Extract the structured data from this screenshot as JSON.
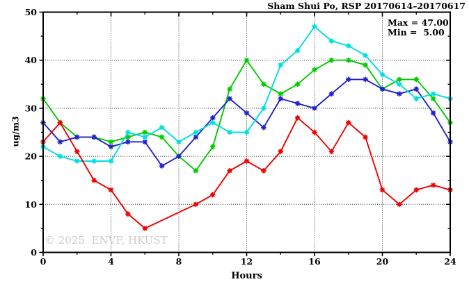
{
  "watermark": "© 2025  ENVF, HKUST",
  "annotations": {
    "max_label": "Max = 47.00",
    "min_label": "Min =  5.00"
  },
  "chart_data": {
    "type": "line",
    "title": "Sham Shui Po, RSP 20170614–20170617",
    "xlabel": "Hours",
    "ylabel": "ug/m3",
    "xlim": [
      0,
      24
    ],
    "ylim": [
      0,
      50
    ],
    "x_major_ticks": [
      0,
      4,
      8,
      12,
      16,
      20,
      24
    ],
    "x_minor_ticks": [
      2,
      6,
      10,
      14,
      18,
      22
    ],
    "y_major_ticks": [
      0,
      10,
      20,
      30,
      40,
      50
    ],
    "y_minor_ticks": [
      5,
      15,
      25,
      35,
      45
    ],
    "x_gridlines": [
      4,
      8,
      12,
      16,
      20
    ],
    "y_gridlines": [
      10,
      20,
      30,
      40
    ],
    "grid": "dotted",
    "legend": "none",
    "x": [
      0,
      1,
      2,
      3,
      4,
      5,
      6,
      7,
      8,
      9,
      10,
      11,
      12,
      13,
      14,
      15,
      16,
      17,
      18,
      19,
      20,
      21,
      22,
      23,
      24
    ],
    "series": [
      {
        "name": "green",
        "color": "#00cc00",
        "values": [
          32,
          27,
          24,
          24,
          23,
          24,
          25,
          24,
          20,
          17,
          22,
          34,
          40,
          35,
          33,
          35,
          38,
          40,
          40,
          39,
          34,
          36,
          36,
          32,
          27
        ]
      },
      {
        "name": "blue",
        "color": "#2222cc",
        "values": [
          27,
          23,
          24,
          24,
          22,
          23,
          23,
          18,
          20,
          24,
          28,
          32,
          29,
          26,
          32,
          31,
          30,
          33,
          36,
          36,
          34,
          33,
          34,
          29,
          23
        ]
      },
      {
        "name": "cyan",
        "color": "#00dede",
        "values": [
          22,
          20,
          19,
          19,
          19,
          25,
          24,
          26,
          23,
          25,
          27,
          25,
          25,
          30,
          39,
          42,
          47,
          44,
          43,
          41,
          37,
          35,
          32,
          33,
          32
        ]
      },
      {
        "name": "red",
        "color": "#ee0000",
        "values": [
          23,
          27,
          21,
          15,
          13,
          8,
          5,
          null,
          null,
          10,
          12,
          17,
          19,
          17,
          21,
          28,
          25,
          21,
          27,
          24,
          13,
          10,
          13,
          14,
          13
        ]
      }
    ],
    "stats": {
      "max": 47.0,
      "min": 5.0
    }
  }
}
